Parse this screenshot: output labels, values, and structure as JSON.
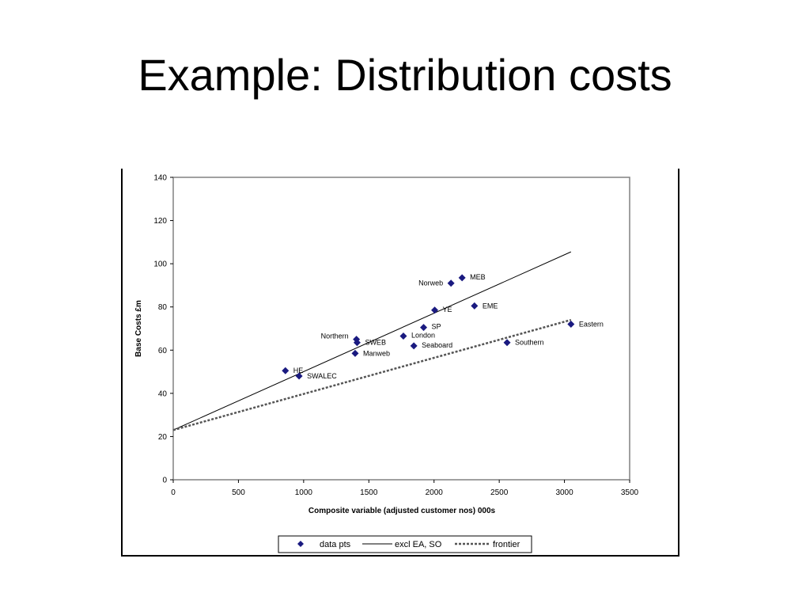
{
  "slide": {
    "title": "Example:  Distribution costs"
  },
  "chart_data": {
    "type": "scatter",
    "xlabel": "Composite variable (adjusted customer nos) 000s",
    "ylabel": "Base Costs £m",
    "xlim": [
      0,
      3500
    ],
    "ylim": [
      0,
      140
    ],
    "x_ticks": [
      0,
      500,
      1000,
      1500,
      2000,
      2500,
      3000,
      3500
    ],
    "y_ticks": [
      0,
      20,
      40,
      60,
      80,
      100,
      120,
      140
    ],
    "grid": false,
    "legend_position": "bottom",
    "colors": {
      "points": "#1a1a80",
      "lines": "#000000",
      "frontier": "#555555"
    },
    "series": [
      {
        "name": "data pts",
        "type": "scatter",
        "points": [
          {
            "label": "HE",
            "x": 860,
            "y": 50.5
          },
          {
            "label": "SWALEC",
            "x": 965,
            "y": 48
          },
          {
            "label": "Northern",
            "x": 1405,
            "y": 65
          },
          {
            "label": "SWEB",
            "x": 1410,
            "y": 63.5
          },
          {
            "label": "Manweb",
            "x": 1395,
            "y": 58.5
          },
          {
            "label": "London",
            "x": 1765,
            "y": 66.5
          },
          {
            "label": "Seaboard",
            "x": 1845,
            "y": 62
          },
          {
            "label": "SP",
            "x": 1920,
            "y": 70.5
          },
          {
            "label": "YE",
            "x": 2005,
            "y": 78.5
          },
          {
            "label": "Norweb",
            "x": 2130,
            "y": 91
          },
          {
            "label": "MEB",
            "x": 2215,
            "y": 93.5
          },
          {
            "label": "EME",
            "x": 2310,
            "y": 80.5
          },
          {
            "label": "Southern",
            "x": 2560,
            "y": 63.5
          },
          {
            "label": "Eastern",
            "x": 3050,
            "y": 72
          }
        ]
      },
      {
        "name": "excl EA, SO",
        "type": "line",
        "x": [
          0,
          3050
        ],
        "y": [
          23,
          105.5
        ]
      },
      {
        "name": "frontier",
        "type": "line",
        "dashed": true,
        "x": [
          0,
          3050
        ],
        "y": [
          23,
          74
        ]
      }
    ]
  }
}
